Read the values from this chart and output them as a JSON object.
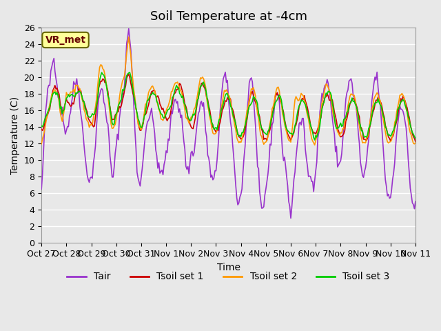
{
  "title": "Soil Temperature at -4cm",
  "ylabel": "Temperature (C)",
  "xlabel": "Time",
  "annotation": "VR_met",
  "annotation_bg": "#FFFF99",
  "annotation_border": "#666600",
  "bg_color": "#E8E8E8",
  "plot_bg": "#E8E8E8",
  "grid_color": "#FFFFFF",
  "ylim": [
    0,
    26
  ],
  "line_colors": {
    "Tair": "#9933CC",
    "Tsoil set 1": "#CC0000",
    "Tsoil set 2": "#FF9900",
    "Tsoil set 3": "#00CC00"
  },
  "line_width": 1.2,
  "xtick_labels": [
    "Oct 27",
    "Oct 28",
    "Oct 29",
    "Oct 30",
    "Oct 31",
    "Nov 1",
    "Nov 2",
    "Nov 3",
    "Nov 4",
    "Nov 5",
    "Nov 6",
    "Nov 7",
    "Nov 8",
    "Nov 9",
    "Nov 10",
    "Nov 11"
  ],
  "xtick_positions": [
    0,
    24,
    48,
    72,
    96,
    120,
    144,
    168,
    192,
    216,
    240,
    264,
    288,
    312,
    336,
    360
  ],
  "title_fontsize": 13,
  "legend_fontsize": 10,
  "tick_fontsize": 9
}
